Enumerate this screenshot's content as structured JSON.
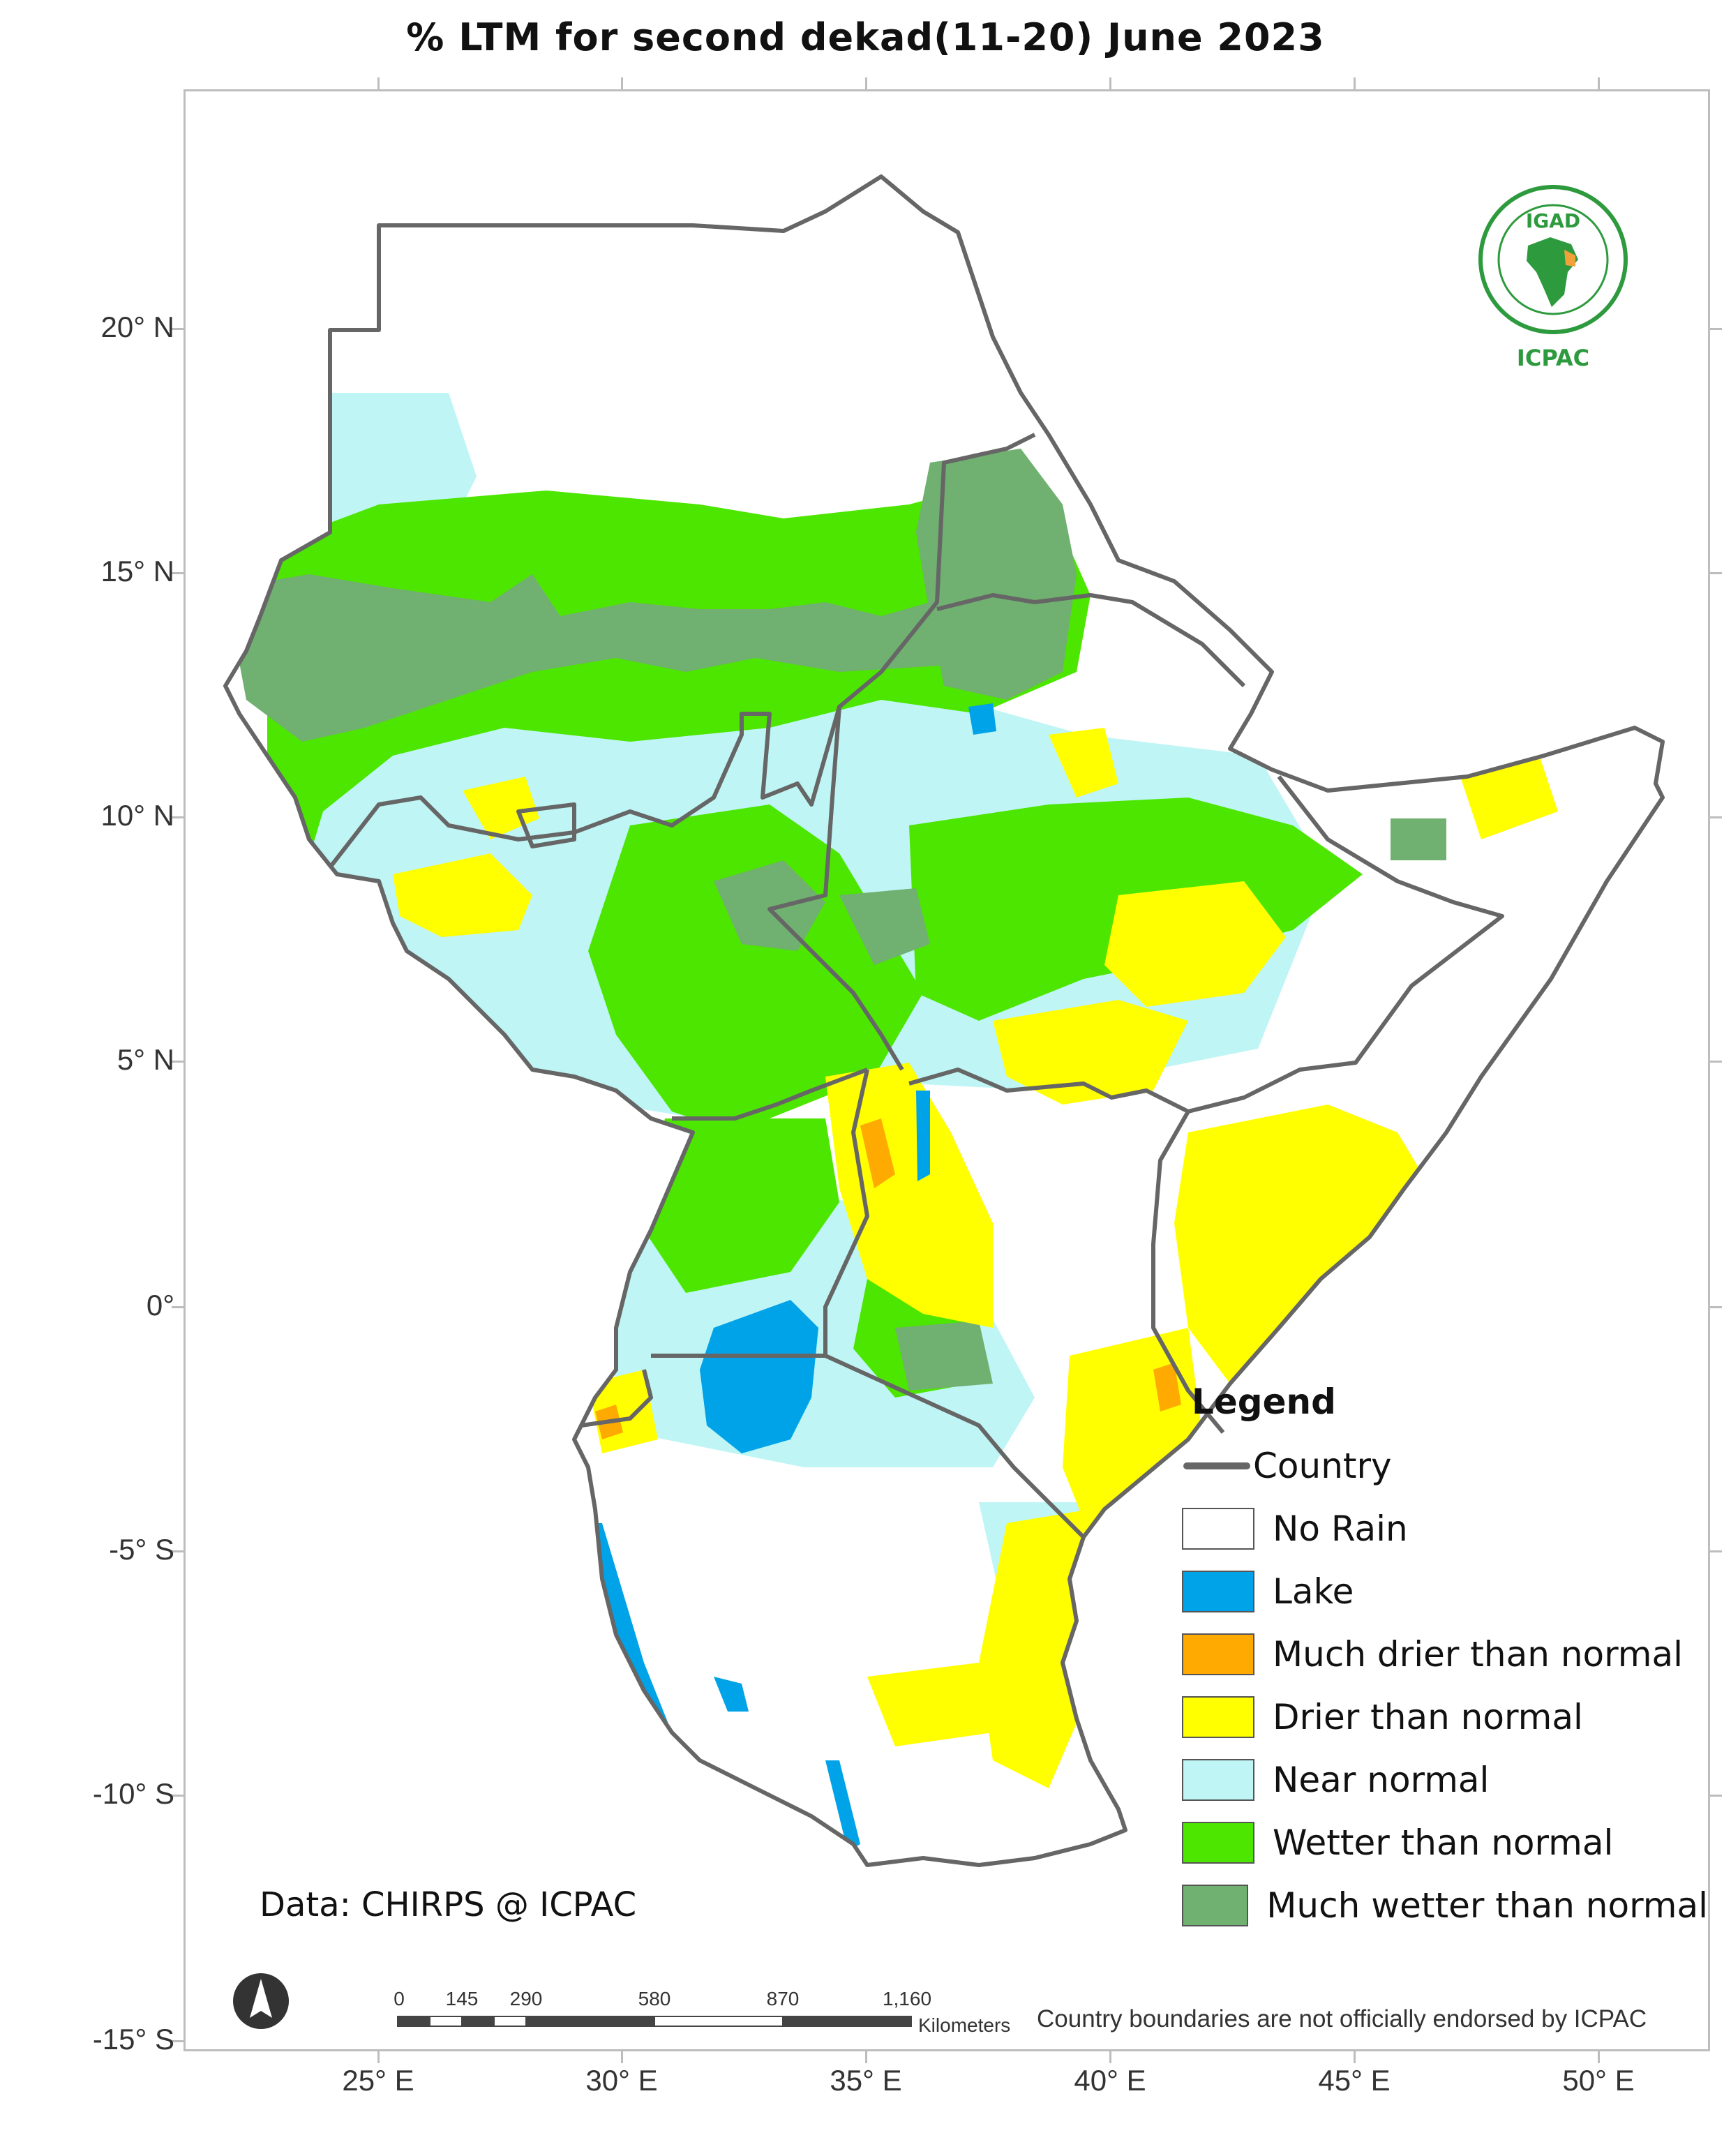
{
  "title": "% LTM   for  second dekad(11-20)  June  2023",
  "y_axis_labels": [
    "20° N",
    "15° N",
    "10° N",
    "5° N",
    "0°",
    "-5° S",
    "-10° S",
    "-15° S"
  ],
  "x_axis_labels": [
    "25° E",
    "30° E",
    "35° E",
    "40° E",
    "45° E",
    "50° E"
  ],
  "legend": {
    "title": "Legend",
    "country_label": "Country",
    "items": [
      {
        "label": "No Rain",
        "color": "#ffffff"
      },
      {
        "label": "Lake",
        "color": "#00a2e8"
      },
      {
        "label": "Much drier than normal",
        "color": "#ffaa00"
      },
      {
        "label": "Drier than normal",
        "color": "#ffff00"
      },
      {
        "label": "Near normal",
        "color": "#bff5f5"
      },
      {
        "label": "Wetter than normal",
        "color": "#4ce600"
      },
      {
        "label": "Much wetter than normal",
        "color": "#70b070"
      }
    ]
  },
  "source_text": "Data: CHIRPS @ ICPAC",
  "disclaimer": "Country boundaries are not officially endorsed by ICPAC",
  "scalebar": {
    "ticks": [
      "0",
      "145",
      "290",
      "580",
      "870",
      "1,160"
    ],
    "unit": "Kilometers"
  },
  "logo": {
    "top_text": "IGAD",
    "bottom_text": "ICPAC"
  },
  "colors": {
    "country_line": "#666666",
    "frame": "#bdbdbd"
  }
}
